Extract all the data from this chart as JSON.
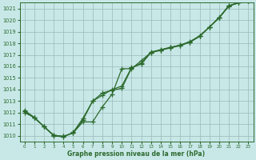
{
  "x": [
    0,
    1,
    2,
    3,
    4,
    5,
    6,
    7,
    8,
    9,
    10,
    11,
    12,
    13,
    14,
    15,
    16,
    17,
    18,
    19,
    20,
    21,
    22,
    23
  ],
  "line1": [
    1012.0,
    1011.6,
    1010.8,
    1010.0,
    1009.9,
    1010.3,
    1011.5,
    1013.0,
    1013.5,
    1014.0,
    1014.3,
    1015.9,
    1016.2,
    1017.2,
    1017.4,
    1017.6,
    1017.8,
    1018.1,
    1018.6,
    1019.4,
    1020.2,
    1021.2,
    1021.5,
    1021.7
  ],
  "line2": [
    1012.2,
    1011.6,
    1010.8,
    1010.05,
    1009.95,
    1010.25,
    1011.2,
    1011.2,
    1012.5,
    1013.6,
    1015.8,
    1015.8,
    1016.5,
    1017.2,
    1017.4,
    1017.65,
    1017.8,
    1018.1,
    1018.6,
    1019.4,
    1020.2,
    1021.25,
    1021.5,
    1021.7
  ],
  "line3": [
    1012.1,
    1011.55,
    1010.8,
    1010.05,
    1009.95,
    1010.25,
    1011.35,
    1013.0,
    1013.7,
    1013.95,
    1014.1,
    1015.85,
    1016.3,
    1017.25,
    1017.45,
    1017.65,
    1017.85,
    1018.15,
    1018.65,
    1019.4,
    1020.25,
    1021.25,
    1021.5,
    1021.7
  ],
  "line_color": "#2d6a2d",
  "bg_color": "#c8e8e8",
  "grid_color": "#9ababa",
  "xlabel_text": "Graphe pression niveau de la mer (hPa)",
  "ylim_min": 1009.5,
  "ylim_max": 1021.5,
  "yticks": [
    1010,
    1011,
    1012,
    1013,
    1014,
    1015,
    1016,
    1017,
    1018,
    1019,
    1020,
    1021
  ],
  "xticks": [
    0,
    1,
    2,
    3,
    4,
    5,
    6,
    7,
    8,
    9,
    10,
    11,
    12,
    13,
    14,
    15,
    16,
    17,
    18,
    19,
    20,
    21,
    22,
    23
  ],
  "marker": "+",
  "markersize": 4,
  "linewidth": 0.9
}
